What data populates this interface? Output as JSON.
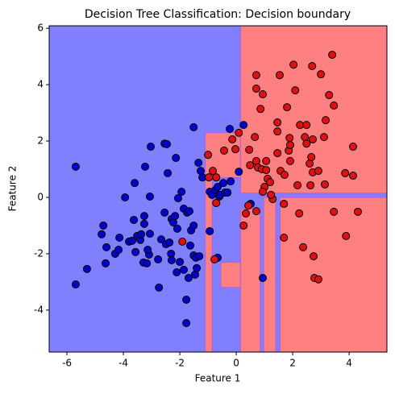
{
  "chart_data": {
    "type": "scatter",
    "title": "Decision Tree Classification: Decision boundary",
    "x_label": "Feature 1",
    "y_label": "Feature 2",
    "xlim": [
      -6.63,
      5.34
    ],
    "ylim": [
      -5.49,
      6.09
    ],
    "xticks": [
      -6,
      -4,
      -2,
      0,
      2,
      4
    ],
    "yticks": [
      -4,
      -2,
      0,
      2,
      4,
      6
    ],
    "background_color": "#8080ff",
    "regions": [
      {
        "x": [
          0.15,
          5.34
        ],
        "y": [
          0.15,
          6.09
        ],
        "color": "#ff8080"
      },
      {
        "x": [
          -1.1,
          0.15
        ],
        "y": [
          0.7,
          2.3
        ],
        "color": "#ff8080"
      },
      {
        "x": [
          -1.1,
          -0.85
        ],
        "y": [
          -5.49,
          0.7
        ],
        "color": "#ff8080"
      },
      {
        "x": [
          0.15,
          0.85
        ],
        "y": [
          -5.49,
          -0.4
        ],
        "color": "#ff8080"
      },
      {
        "x": [
          0.97,
          1.4
        ],
        "y": [
          -5.49,
          0.0
        ],
        "color": "#ff8080"
      },
      {
        "x": [
          1.55,
          5.34
        ],
        "y": [
          -5.49,
          0.0
        ],
        "color": "#ff8080"
      },
      {
        "x": [
          -0.55,
          0.15
        ],
        "y": [
          -3.2,
          -2.3
        ],
        "color": "#ff8080"
      }
    ],
    "series": [
      {
        "color": "#0000cc",
        "x": [
          -5.69,
          -5.69,
          -5.29,
          -4.77,
          -4.71,
          -4.6,
          -4.63,
          -4.29,
          -4.17,
          -4.14,
          -3.94,
          -3.8,
          -3.69,
          -3.63,
          -3.51,
          -3.6,
          -3.57,
          -3.4,
          -3.37,
          -3.29,
          -3.26,
          -3.23,
          -3.26,
          -3.09,
          -3.06,
          -3.14,
          -3.06,
          -3.03,
          -3.17,
          -2.77,
          -2.74,
          -2.66,
          -2.54,
          -2.49,
          -2.43,
          -2.37,
          -2.31,
          -2.29,
          -2.29,
          -2.23,
          -2.17,
          -2.14,
          -2.11,
          -2.09,
          -2.06,
          -2.0,
          -1.94,
          -1.86,
          -1.86,
          -1.77,
          -1.77,
          -1.74,
          -1.69,
          -1.66,
          -1.63,
          -1.6,
          -1.51,
          -1.51,
          -1.51,
          -1.46,
          -1.43,
          -1.4,
          -1.34,
          -1.31,
          -1.26,
          -1.2,
          -2.54,
          -2.46,
          -0.94,
          -0.86,
          -0.74,
          -0.66,
          -0.6,
          -0.57,
          -0.46,
          -0.66,
          -0.4,
          -0.31,
          -0.23,
          -0.2,
          0.26,
          0.94,
          0.51,
          -0.94,
          0.09
        ],
        "y": [
          1.09,
          -3.09,
          -2.54,
          -1.31,
          -1.0,
          -1.77,
          -2.34,
          -2.0,
          -1.86,
          -1.43,
          0.0,
          -1.57,
          -1.54,
          -0.8,
          -1.37,
          0.51,
          -1.94,
          -1.51,
          -1.31,
          -2.31,
          -0.94,
          1.09,
          -0.66,
          -2.03,
          0.03,
          -1.86,
          -1.29,
          1.8,
          -2.34,
          -2.2,
          -3.2,
          -1.49,
          -0.54,
          -1.66,
          0.86,
          -1.6,
          -2.0,
          -2.23,
          -0.77,
          -0.89,
          -0.66,
          1.4,
          -2.66,
          -1.11,
          -0.03,
          -2.29,
          0.2,
          -0.4,
          -2.57,
          -3.63,
          -4.46,
          -0.54,
          -2.86,
          -0.49,
          -1.71,
          -1.17,
          2.49,
          -1.0,
          -2.06,
          -2.74,
          -2.14,
          -2.51,
          1.23,
          -2.09,
          0.94,
          0.71,
          1.91,
          1.89,
          0.2,
          0.09,
          0.26,
          0.37,
          0.03,
          0.09,
          0.51,
          -2.14,
          0.17,
          0.17,
          2.43,
          0.57,
          2.57,
          -2.86,
          -0.23,
          -1.2,
          0.91
        ]
      },
      {
        "color": "#e01010",
        "x": [
          -1.91,
          -1.0,
          -0.97,
          -0.71,
          -0.83,
          -0.71,
          -0.77,
          -0.43,
          -0.14,
          -0.03,
          0.09,
          0.34,
          0.43,
          0.71,
          0.26,
          0.66,
          0.46,
          0.49,
          0.71,
          0.77,
          0.91,
          1.0,
          0.94,
          1.11,
          1.2,
          1.29,
          1.23,
          1.06,
          1.06,
          0.86,
          0.94,
          0.71,
          0.71,
          1.54,
          1.46,
          1.46,
          1.46,
          1.57,
          1.69,
          1.71,
          1.86,
          1.89,
          1.91,
          1.91,
          1.8,
          2.03,
          2.09,
          2.26,
          2.17,
          2.37,
          2.43,
          2.49,
          2.49,
          2.6,
          2.63,
          2.66,
          2.71,
          2.71,
          2.69,
          2.74,
          2.77,
          2.91,
          2.91,
          3.0,
          3.11,
          3.17,
          3.29,
          3.4,
          3.46,
          3.89,
          3.86,
          3.46,
          4.14,
          4.14,
          4.31,
          3.14,
          2.23,
          1.69
        ],
        "y": [
          -1.57,
          1.51,
          0.71,
          0.71,
          0.94,
          -0.2,
          -2.2,
          1.66,
          2.06,
          1.71,
          2.29,
          -0.57,
          -0.29,
          -0.49,
          -1.0,
          2.14,
          1.69,
          1.14,
          1.29,
          1.06,
          1.0,
          0.37,
          0.2,
          0.66,
          0.54,
          -0.06,
          0.09,
          0.97,
          1.29,
          3.14,
          3.66,
          3.86,
          4.34,
          4.34,
          2.34,
          2.66,
          1.57,
          0.94,
          -1.43,
          0.8,
          1.66,
          2.11,
          1.86,
          1.29,
          3.2,
          4.71,
          3.8,
          2.57,
          0.43,
          -1.77,
          2.14,
          2.57,
          1.91,
          1.2,
          0.43,
          1.43,
          2.06,
          0.89,
          4.66,
          -2.09,
          -2.86,
          -2.91,
          0.94,
          4.37,
          2.14,
          2.74,
          3.63,
          5.06,
          3.26,
          -1.37,
          0.86,
          -0.51,
          1.8,
          0.77,
          -0.51,
          0.46,
          -0.57,
          -0.23
        ]
      }
    ]
  }
}
